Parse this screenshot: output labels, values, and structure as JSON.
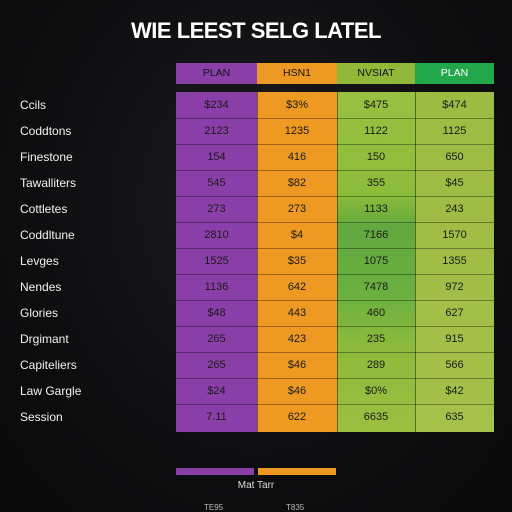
{
  "title": "WIE LEEST SELG LATEL",
  "colors": {
    "purple": "#8a3fa8",
    "orange": "#ee9a22",
    "lime": "#92b83a",
    "green": "#22a84a",
    "background": "#0e0e10"
  },
  "columns": [
    "PLAN",
    "HSN1",
    "NVSIAT",
    "PLAN"
  ],
  "rows": [
    {
      "label": "Ccils",
      "values": [
        "$234",
        "$3%",
        "$475",
        "$474"
      ]
    },
    {
      "label": "Coddtons",
      "values": [
        "2123",
        "1235",
        "1122",
        "1125"
      ]
    },
    {
      "label": "Finestone",
      "values": [
        "154",
        "416",
        "150",
        "650"
      ]
    },
    {
      "label": "Tawalliters",
      "values": [
        "545",
        "$82",
        "355",
        "$45"
      ]
    },
    {
      "label": "Cottletes",
      "values": [
        "273",
        "273",
        "1133",
        "243"
      ]
    },
    {
      "label": "Coddltune",
      "values": [
        "2810",
        "$4",
        "7166",
        "1570"
      ]
    },
    {
      "label": "Levges",
      "values": [
        "1525",
        "$35",
        "1075",
        "1355"
      ]
    },
    {
      "label": "Nendes",
      "values": [
        "1136",
        "642",
        "7478",
        "972"
      ]
    },
    {
      "label": "Glories",
      "values": [
        "$48",
        "443",
        "460",
        "627"
      ]
    },
    {
      "label": "Drgimant",
      "values": [
        "265",
        "423",
        "235",
        "915"
      ]
    },
    {
      "label": "Capiteliers",
      "values": [
        "265",
        "$46",
        "289",
        "566"
      ]
    },
    {
      "label": "Law Gargle",
      "values": [
        "$24",
        "$46",
        "$0%",
        "$42"
      ]
    },
    {
      "label": "Session",
      "values": [
        "7.11",
        "622",
        "6635",
        "635"
      ]
    }
  ],
  "legend": {
    "text": "Mat Tarr"
  },
  "footer": {
    "left": "TE95",
    "right": "T835"
  }
}
